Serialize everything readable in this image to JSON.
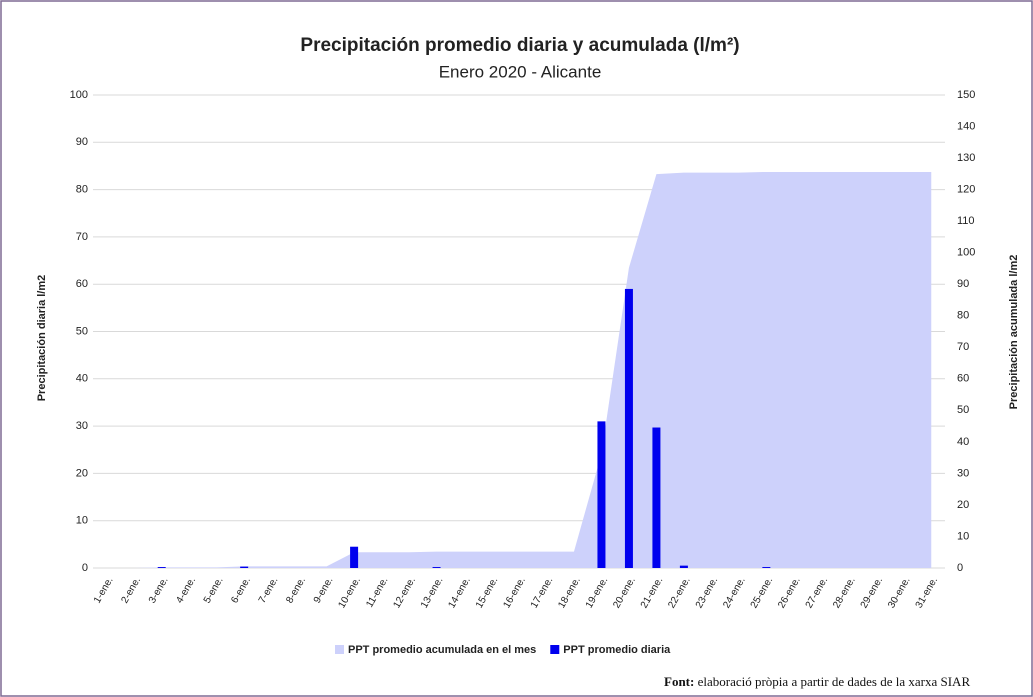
{
  "chart_data": {
    "type": "bar",
    "title": "Precipitación promedio diaria y acumulada (l/m²)",
    "subtitle": "Enero 2020 - Alicante",
    "ylabel": "Precipitación diaria l/m2",
    "y2label": "Precipitación acumulada l/m2",
    "categories": [
      "1-ene.",
      "2-ene.",
      "3-ene.",
      "4-ene.",
      "5-ene.",
      "6-ene.",
      "7-ene.",
      "8-ene.",
      "9-ene.",
      "10-ene.",
      "11-ene.",
      "12-ene.",
      "13-ene.",
      "14-ene.",
      "15-ene.",
      "16-ene.",
      "17-ene.",
      "18-ene.",
      "19-ene.",
      "20-ene.",
      "21-ene.",
      "22-ene.",
      "23-ene.",
      "24-ene.",
      "25-ene.",
      "26-ene.",
      "27-ene.",
      "28-ene.",
      "29-ene.",
      "30-ene.",
      "31-ene."
    ],
    "series": [
      {
        "name": "PPT promedio acumulada en el mes",
        "type": "area",
        "axis": "y2",
        "color": "#cdd1fb",
        "values": [
          0,
          0,
          0.2,
          0.2,
          0.2,
          0.5,
          0.5,
          0.5,
          0.5,
          5,
          5,
          5,
          5.2,
          5.2,
          5.2,
          5.2,
          5.2,
          5.2,
          36.2,
          95.2,
          124.9,
          125.4,
          125.4,
          125.4,
          125.6,
          125.6,
          125.6,
          125.6,
          125.6,
          125.6,
          125.6
        ]
      },
      {
        "name": "PPT promedio diaria",
        "type": "bar",
        "color": "#0000ee",
        "values": [
          0,
          0,
          0.2,
          0,
          0,
          0.3,
          0,
          0,
          0,
          4.5,
          0,
          0,
          0.2,
          0,
          0,
          0,
          0,
          0,
          31,
          59,
          29.7,
          0.5,
          0,
          0,
          0.2,
          0,
          0,
          0,
          0,
          0,
          0
        ]
      }
    ],
    "ylim": [
      0,
      100
    ],
    "yticks": [
      0,
      10,
      20,
      30,
      40,
      50,
      60,
      70,
      80,
      90,
      100
    ],
    "y2lim": [
      0,
      150
    ],
    "y2ticks": [
      0,
      10,
      20,
      30,
      40,
      50,
      60,
      70,
      80,
      90,
      100,
      110,
      120,
      130,
      140,
      150
    ],
    "grid": true,
    "legend": "bottom"
  },
  "footnote": {
    "label": "Font:",
    "text": "elaboració pròpia a partir de dades de la xarxa SIAR"
  }
}
